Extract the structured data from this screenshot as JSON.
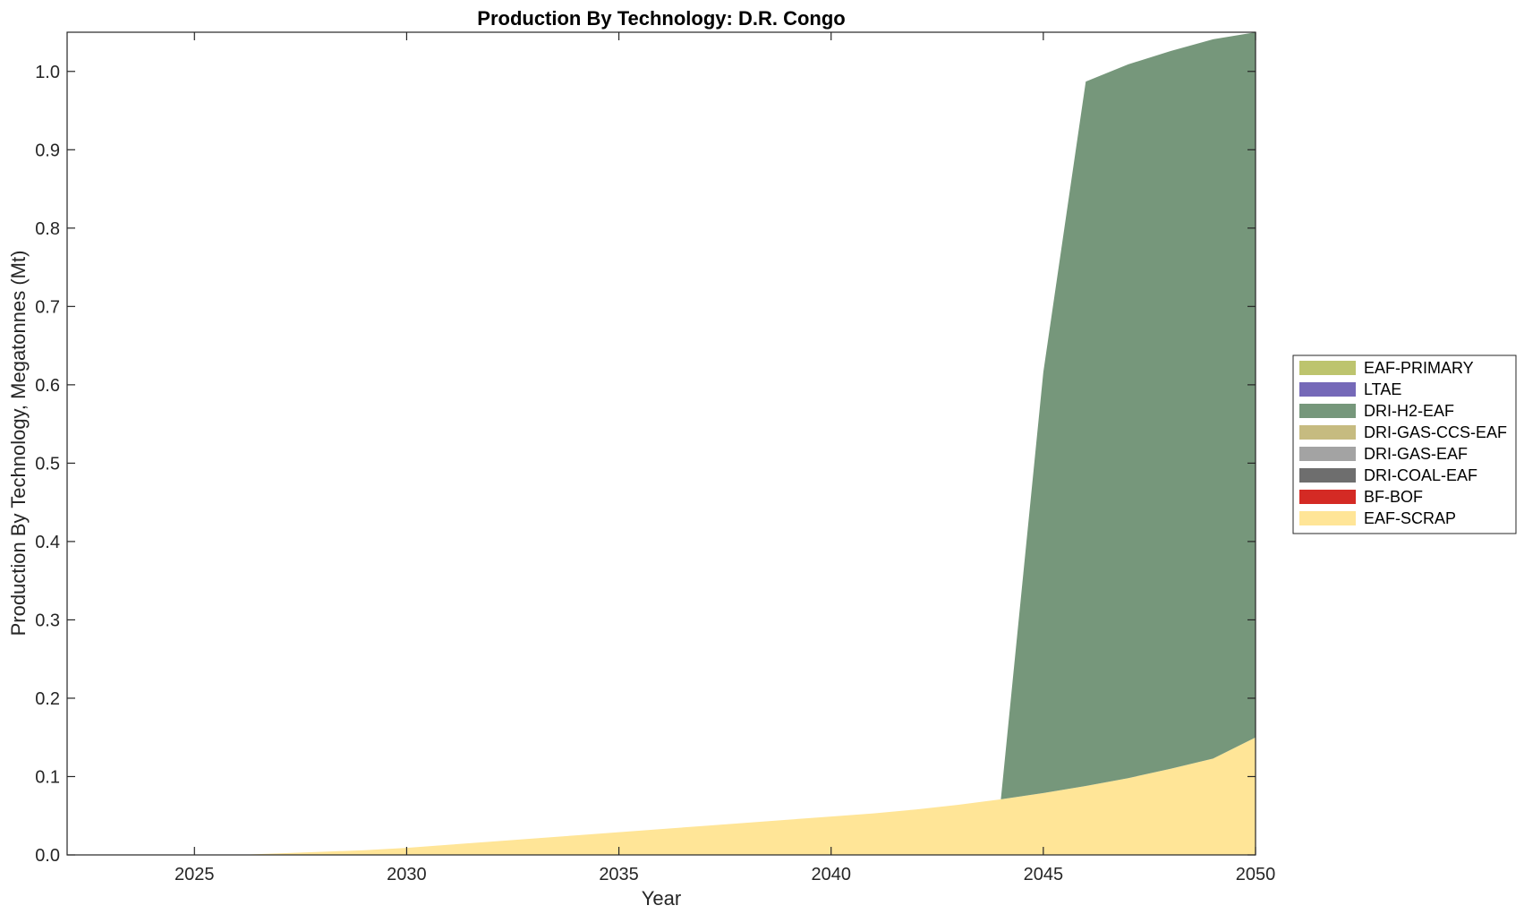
{
  "chart_data": {
    "type": "area",
    "stacked": true,
    "title": "Production By Technology: D.R. Congo",
    "xlabel": "Year",
    "ylabel": "Production By Technology, Megatonnes (Mt)",
    "xlim": [
      2022,
      2050
    ],
    "ylim": [
      0,
      1.05
    ],
    "xticks": [
      2025,
      2030,
      2035,
      2040,
      2045,
      2050
    ],
    "yticks": [
      0.0,
      0.1,
      0.2,
      0.3,
      0.4,
      0.5,
      0.6,
      0.7,
      0.8,
      0.9,
      1.0
    ],
    "ytick_labels": [
      "0.0",
      "0.1",
      "0.2",
      "0.3",
      "0.4",
      "0.5",
      "0.6",
      "0.7",
      "0.8",
      "0.9",
      "1.0"
    ],
    "grid": false,
    "legend_position": "right",
    "x": [
      2022,
      2023,
      2024,
      2025,
      2026,
      2027,
      2028,
      2029,
      2030,
      2031,
      2032,
      2033,
      2034,
      2035,
      2036,
      2037,
      2038,
      2039,
      2040,
      2041,
      2042,
      2043,
      2044,
      2045,
      2046,
      2047,
      2048,
      2049,
      2050
    ],
    "series": [
      {
        "name": "EAF-SCRAP",
        "color": "#FFE597",
        "values": [
          0,
          0,
          0,
          0,
          0,
          0.002,
          0.004,
          0.006,
          0.009,
          0.013,
          0.017,
          0.021,
          0.025,
          0.029,
          0.033,
          0.037,
          0.041,
          0.045,
          0.049,
          0.053,
          0.058,
          0.064,
          0.071,
          0.079,
          0.088,
          0.098,
          0.11,
          0.123,
          0.15
        ]
      },
      {
        "name": "BF-BOF",
        "color": "#D42A24",
        "values": [
          0,
          0,
          0,
          0,
          0,
          0,
          0,
          0,
          0,
          0,
          0,
          0,
          0,
          0,
          0,
          0,
          0,
          0,
          0,
          0,
          0,
          0,
          0,
          0,
          0,
          0,
          0,
          0,
          0
        ]
      },
      {
        "name": "DRI-COAL-EAF",
        "color": "#6E6E6E",
        "values": [
          0,
          0,
          0,
          0,
          0,
          0,
          0,
          0,
          0,
          0,
          0,
          0,
          0,
          0,
          0,
          0,
          0,
          0,
          0,
          0,
          0,
          0,
          0,
          0,
          0,
          0,
          0,
          0,
          0
        ]
      },
      {
        "name": "DRI-GAS-EAF",
        "color": "#A3A3A3",
        "values": [
          0,
          0,
          0,
          0,
          0,
          0,
          0,
          0,
          0,
          0,
          0,
          0,
          0,
          0,
          0,
          0,
          0,
          0,
          0,
          0,
          0,
          0,
          0,
          0,
          0,
          0,
          0,
          0,
          0
        ]
      },
      {
        "name": "DRI-GAS-CCS-EAF",
        "color": "#C6BB80",
        "values": [
          0,
          0,
          0,
          0,
          0,
          0,
          0,
          0,
          0,
          0,
          0,
          0,
          0,
          0,
          0,
          0,
          0,
          0,
          0,
          0,
          0,
          0,
          0,
          0,
          0,
          0,
          0,
          0,
          0
        ]
      },
      {
        "name": "DRI-H2-EAF",
        "color": "#76977B",
        "values": [
          0,
          0,
          0,
          0,
          0,
          0,
          0,
          0,
          0,
          0,
          0,
          0,
          0,
          0,
          0,
          0,
          0,
          0,
          0,
          0,
          0,
          0,
          0,
          0.537,
          0.899,
          0.911,
          0.916,
          0.918,
          0.9
        ]
      },
      {
        "name": "LTAE",
        "color": "#7569B8",
        "values": [
          0,
          0,
          0,
          0,
          0,
          0,
          0,
          0,
          0,
          0,
          0,
          0,
          0,
          0,
          0,
          0,
          0,
          0,
          0,
          0,
          0,
          0,
          0,
          0,
          0,
          0,
          0,
          0,
          0
        ]
      },
      {
        "name": "EAF-PRIMARY",
        "color": "#BDC46E",
        "values": [
          0,
          0,
          0,
          0,
          0,
          0,
          0,
          0,
          0,
          0,
          0,
          0,
          0,
          0,
          0,
          0,
          0,
          0,
          0,
          0,
          0,
          0,
          0,
          0,
          0,
          0,
          0,
          0,
          0
        ]
      }
    ],
    "legend_order": [
      "EAF-PRIMARY",
      "LTAE",
      "DRI-H2-EAF",
      "DRI-GAS-CCS-EAF",
      "DRI-GAS-EAF",
      "DRI-COAL-EAF",
      "BF-BOF",
      "EAF-SCRAP"
    ]
  }
}
